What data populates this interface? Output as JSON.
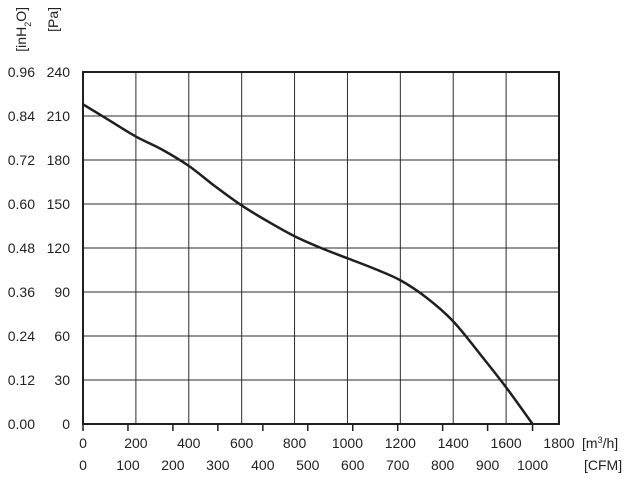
{
  "chart_data": {
    "type": "line",
    "title": "",
    "grid": true,
    "x_axis_primary": {
      "unit_label": "[m³/h]",
      "range": [
        0,
        1800
      ],
      "ticks": [
        "0",
        "200",
        "400",
        "600",
        "800",
        "1000",
        "1200",
        "1400",
        "1600",
        "1800"
      ]
    },
    "x_axis_secondary": {
      "unit_label": "[CFM]",
      "ticks": [
        "0",
        "100",
        "200",
        "300",
        "400",
        "500",
        "600",
        "700",
        "800",
        "900",
        "1000"
      ]
    },
    "y_axis_primary": {
      "unit_label": "[Pa]",
      "range": [
        0,
        240
      ],
      "ticks": [
        "0",
        "30",
        "60",
        "90",
        "120",
        "150",
        "180",
        "210",
        "240"
      ]
    },
    "y_axis_secondary": {
      "unit_label": "[inH2O]",
      "ticks": [
        "0.00",
        "0.12",
        "0.24",
        "0.36",
        "0.48",
        "0.60",
        "0.72",
        "0.84",
        "0.96"
      ]
    },
    "series": [
      {
        "x": [
          0,
          100,
          200,
          300,
          400,
          500,
          600,
          700,
          800,
          900,
          1000,
          1100,
          1200,
          1300,
          1400,
          1500,
          1600,
          1700
        ],
        "y": [
          218,
          207,
          196,
          187,
          176,
          162,
          149,
          138,
          128,
          120,
          113,
          106,
          98,
          86,
          70,
          48,
          25,
          0
        ]
      }
    ],
    "color": "#1f1f1f"
  }
}
